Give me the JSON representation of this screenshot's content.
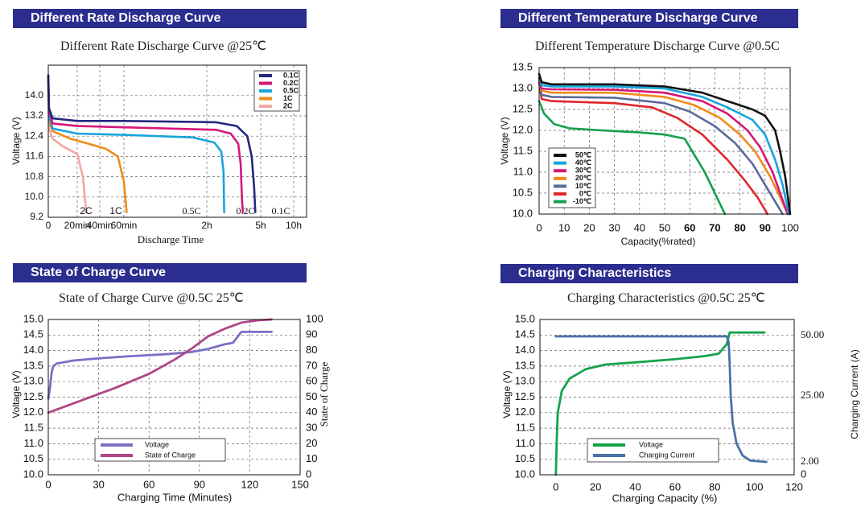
{
  "panels": [
    {
      "banner": "Different Rate Discharge Curve",
      "subtitle": "Different Rate Discharge Curve @25℃"
    },
    {
      "banner": "Different Temperature Discharge Curve",
      "subtitle": "Different Temperature Discharge Curve @0.5C"
    },
    {
      "banner": "State of Charge Curve",
      "subtitle": "State of Charge Curve @0.5C 25℃"
    },
    {
      "banner": "Charging Characteristics",
      "subtitle": "Charging Characteristics @0.5C 25℃"
    }
  ],
  "chart_data": [
    {
      "type": "line",
      "title": "Different Rate Discharge Curve @25℃",
      "xlabel": "Discharge Time",
      "ylabel": "Voltage (V)",
      "ylim": [
        9.2,
        15.2
      ],
      "y_ticks": [
        "14.0",
        "13.2",
        "12.4",
        "11.6",
        "10.8",
        "10.0",
        "9.2"
      ],
      "x_ticks": [
        "0",
        "20min",
        "40min",
        "60min",
        "2h",
        "5h",
        "10h"
      ],
      "curve_labels": [
        "2C",
        "1C",
        "0.5C",
        "0.2C",
        "0.1C"
      ],
      "legend": [
        "0.1C",
        "0.2C",
        "0.5C",
        "1C",
        "2C"
      ],
      "series": [
        {
          "name": "0.1C",
          "color": "#23277e",
          "points": [
            [
              0,
              14.8
            ],
            [
              0.5,
              13.5
            ],
            [
              3,
              13.1
            ],
            [
              20,
              13.0
            ],
            [
              60,
              13.0
            ],
            [
              150,
              12.95
            ],
            [
              220,
              12.8
            ],
            [
              255,
              12.4
            ],
            [
              270,
              11.6
            ],
            [
              278,
              10.4
            ],
            [
              282,
              9.4
            ]
          ]
        },
        {
          "name": "0.2C",
          "color": "#d3177a",
          "points": [
            [
              0,
              14.8
            ],
            [
              0.5,
              13.4
            ],
            [
              3,
              12.9
            ],
            [
              20,
              12.8
            ],
            [
              60,
              12.75
            ],
            [
              150,
              12.65
            ],
            [
              200,
              12.5
            ],
            [
              225,
              12.1
            ],
            [
              233,
              11.3
            ],
            [
              237,
              10.0
            ],
            [
              240,
              9.4
            ]
          ]
        },
        {
          "name": "0.5C",
          "color": "#18a4dd",
          "points": [
            [
              0,
              14.6
            ],
            [
              0.5,
              13.2
            ],
            [
              3,
              12.7
            ],
            [
              20,
              12.5
            ],
            [
              60,
              12.45
            ],
            [
              110,
              12.35
            ],
            [
              145,
              12.15
            ],
            [
              168,
              11.8
            ],
            [
              176,
              11.0
            ],
            [
              178,
              9.4
            ]
          ]
        },
        {
          "name": "1C",
          "color": "#ef8b1b",
          "points": [
            [
              0,
              14.4
            ],
            [
              0.5,
              13.0
            ],
            [
              3,
              12.6
            ],
            [
              15,
              12.3
            ],
            [
              30,
              12.1
            ],
            [
              45,
              11.9
            ],
            [
              55,
              11.6
            ],
            [
              60,
              10.6
            ],
            [
              62,
              9.4
            ]
          ]
        },
        {
          "name": "2C",
          "color": "#f2a8a4",
          "points": [
            [
              0,
              14.2
            ],
            [
              0.5,
              12.7
            ],
            [
              3,
              12.3
            ],
            [
              10,
              12.0
            ],
            [
              20,
              11.7
            ],
            [
              25,
              10.8
            ],
            [
              28,
              9.4
            ]
          ]
        }
      ]
    },
    {
      "type": "line",
      "title": "Different Temperature Discharge Curve @0.5C",
      "xlabel": "Capacity(%rated)",
      "ylabel": "Voltage (V)",
      "xlim": [
        0,
        100
      ],
      "ylim": [
        10.0,
        13.5
      ],
      "y_ticks": [
        13.5,
        13.0,
        12.5,
        12.0,
        11.5,
        11.0,
        10.5,
        10.0
      ],
      "x_ticks": [
        0,
        10,
        20,
        30,
        40,
        50,
        60,
        70,
        80,
        90,
        100
      ],
      "legend": [
        "50℃",
        "40℃",
        "30℃",
        "20℃",
        "10℃",
        "0℃",
        "-10℃"
      ],
      "series": [
        {
          "name": "50℃",
          "color": "#111111",
          "points": [
            [
              0,
              13.35
            ],
            [
              1,
              13.15
            ],
            [
              5,
              13.1
            ],
            [
              30,
              13.1
            ],
            [
              50,
              13.05
            ],
            [
              65,
              12.9
            ],
            [
              75,
              12.7
            ],
            [
              85,
              12.5
            ],
            [
              90,
              12.35
            ],
            [
              94,
              12.0
            ],
            [
              96,
              11.5
            ],
            [
              98,
              10.9
            ],
            [
              100,
              10.0
            ]
          ]
        },
        {
          "name": "40℃",
          "color": "#18a4dd",
          "points": [
            [
              0,
              13.3
            ],
            [
              1,
              13.08
            ],
            [
              5,
              13.05
            ],
            [
              30,
              13.05
            ],
            [
              50,
              13.0
            ],
            [
              65,
              12.8
            ],
            [
              75,
              12.55
            ],
            [
              85,
              12.25
            ],
            [
              90,
              11.9
            ],
            [
              94,
              11.3
            ],
            [
              97,
              10.7
            ],
            [
              99.5,
              10.0
            ]
          ]
        },
        {
          "name": "30℃",
          "color": "#d3177a",
          "points": [
            [
              0,
              13.25
            ],
            [
              1,
              13.0
            ],
            [
              5,
              12.98
            ],
            [
              30,
              12.97
            ],
            [
              50,
              12.9
            ],
            [
              65,
              12.7
            ],
            [
              75,
              12.4
            ],
            [
              83,
              12.0
            ],
            [
              88,
              11.6
            ],
            [
              93,
              11.0
            ],
            [
              96,
              10.5
            ],
            [
              99,
              10.0
            ]
          ]
        },
        {
          "name": "20℃",
          "color": "#ef8b1b",
          "points": [
            [
              0,
              13.25
            ],
            [
              1,
              12.95
            ],
            [
              5,
              12.9
            ],
            [
              30,
              12.9
            ],
            [
              50,
              12.8
            ],
            [
              62,
              12.6
            ],
            [
              72,
              12.3
            ],
            [
              80,
              11.9
            ],
            [
              86,
              11.5
            ],
            [
              92,
              10.9
            ],
            [
              96,
              10.4
            ],
            [
              99,
              10.0
            ]
          ]
        },
        {
          "name": "10℃",
          "color": "#5a6a9a",
          "points": [
            [
              0,
              13.2
            ],
            [
              1,
              12.85
            ],
            [
              5,
              12.8
            ],
            [
              30,
              12.78
            ],
            [
              50,
              12.65
            ],
            [
              60,
              12.45
            ],
            [
              70,
              12.1
            ],
            [
              78,
              11.7
            ],
            [
              85,
              11.2
            ],
            [
              91,
              10.6
            ],
            [
              95,
              10.2
            ],
            [
              97,
              10.0
            ]
          ]
        },
        {
          "name": "0℃",
          "color": "#e0262b",
          "points": [
            [
              0,
              13.15
            ],
            [
              1,
              12.75
            ],
            [
              5,
              12.7
            ],
            [
              30,
              12.65
            ],
            [
              45,
              12.55
            ],
            [
              55,
              12.3
            ],
            [
              65,
              11.9
            ],
            [
              75,
              11.3
            ],
            [
              82,
              10.8
            ],
            [
              87,
              10.4
            ],
            [
              91,
              10.0
            ]
          ]
        },
        {
          "name": "-10℃",
          "color": "#15a04d",
          "points": [
            [
              0,
              12.7
            ],
            [
              2,
              12.4
            ],
            [
              6,
              12.15
            ],
            [
              12,
              12.05
            ],
            [
              25,
              12.0
            ],
            [
              40,
              11.95
            ],
            [
              50,
              11.9
            ],
            [
              58,
              11.8
            ],
            [
              62,
              11.4
            ],
            [
              66,
              11.0
            ],
            [
              70,
              10.5
            ],
            [
              74,
              10.0
            ]
          ]
        }
      ]
    },
    {
      "type": "line",
      "title": "State of Charge Curve @0.5C 25℃",
      "xlabel": "Charging Time (Minutes)",
      "ylabel": "Voltage (V)",
      "y2label": "State of Charge",
      "xlim": [
        0,
        150
      ],
      "ylim": [
        10.0,
        15.0
      ],
      "y2lim": [
        0,
        100
      ],
      "x_ticks": [
        0,
        30,
        60,
        90,
        120,
        150
      ],
      "y_ticks": [
        "15.0",
        "14.5",
        "14.0",
        "13.5",
        "13.0",
        "12.5",
        "12.0",
        "11.5",
        "11.0",
        "10.5",
        "10.0"
      ],
      "y2_ticks": [
        100,
        90,
        80,
        70,
        60,
        50,
        40,
        30,
        20,
        10,
        0
      ],
      "legend": [
        "Voltage",
        "State of Charge"
      ],
      "series": [
        {
          "name": "Voltage",
          "color": "#7b6fc5",
          "axis": "left",
          "points": [
            [
              0,
              12.45
            ],
            [
              1,
              12.8
            ],
            [
              2,
              13.3
            ],
            [
              3,
              13.5
            ],
            [
              5,
              13.58
            ],
            [
              15,
              13.68
            ],
            [
              30,
              13.75
            ],
            [
              50,
              13.82
            ],
            [
              70,
              13.88
            ],
            [
              85,
              13.95
            ],
            [
              95,
              14.05
            ],
            [
              105,
              14.2
            ],
            [
              110,
              14.25
            ],
            [
              115,
              14.6
            ],
            [
              133,
              14.6
            ]
          ]
        },
        {
          "name": "State of Charge",
          "color": "#b04686",
          "axis": "right",
          "points": [
            [
              0,
              40
            ],
            [
              20,
              48
            ],
            [
              40,
              56
            ],
            [
              60,
              65
            ],
            [
              75,
              74
            ],
            [
              85,
              81
            ],
            [
              95,
              89
            ],
            [
              105,
              94
            ],
            [
              115,
              98
            ],
            [
              125,
              99.5
            ],
            [
              133,
              100
            ]
          ]
        }
      ]
    },
    {
      "type": "line",
      "title": "Charging Characteristics @0.5C 25℃",
      "xlabel": "Charging Capacity (%)",
      "ylabel": "Voltage (V)",
      "y2label": "Charging Current (A)",
      "xlim": [
        -8,
        120
      ],
      "ylim": [
        10.0,
        15.0
      ],
      "x_ticks": [
        0,
        20,
        40,
        60,
        80,
        100,
        120
      ],
      "y_ticks": [
        "15.0",
        "14.5",
        "14.0",
        "13.5",
        "13.0",
        "12.5",
        "12.0",
        "11.5",
        "11.0",
        "10.5",
        "10.0"
      ],
      "y2_ticks": [
        "50.00",
        "25.00",
        "2.00",
        "0"
      ],
      "legend": [
        "Voltage",
        "Charging Current"
      ],
      "series": [
        {
          "name": "Voltage",
          "color": "#16a34a",
          "axis": "left",
          "points": [
            [
              0,
              10.0
            ],
            [
              0.5,
              11.2
            ],
            [
              1,
              12.0
            ],
            [
              3,
              12.7
            ],
            [
              7,
              13.1
            ],
            [
              15,
              13.4
            ],
            [
              25,
              13.55
            ],
            [
              40,
              13.62
            ],
            [
              60,
              13.72
            ],
            [
              75,
              13.82
            ],
            [
              82,
              13.9
            ],
            [
              86,
              14.2
            ],
            [
              87.5,
              14.58
            ],
            [
              105,
              14.58
            ]
          ]
        },
        {
          "name": "Charging Current",
          "color": "#4a70a8",
          "axis": "right",
          "points": [
            [
              0,
              50.0
            ],
            [
              86,
              50.0
            ],
            [
              87,
              48
            ],
            [
              87.5,
              40
            ],
            [
              88,
              28
            ],
            [
              89,
              17
            ],
            [
              91,
              9
            ],
            [
              94,
              4.5
            ],
            [
              98,
              2.5
            ],
            [
              106,
              2.0
            ]
          ]
        }
      ]
    }
  ]
}
